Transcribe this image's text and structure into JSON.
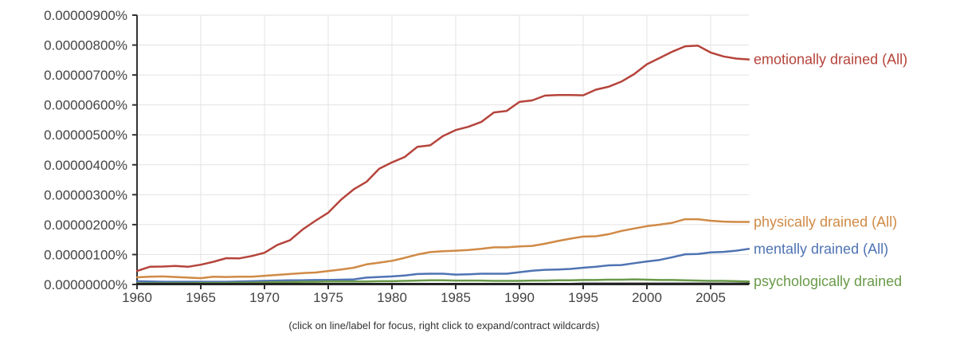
{
  "chart_data": {
    "type": "line",
    "x_ticks": [
      1960,
      1965,
      1970,
      1975,
      1980,
      1985,
      1990,
      1995,
      2000,
      2005
    ],
    "xlim": [
      1960,
      2008
    ],
    "y_ticks": [
      "0.00000000%",
      "0.00000100%",
      "0.00000200%",
      "0.00000300%",
      "0.00000400%",
      "0.00000500%",
      "0.00000600%",
      "0.00000700%",
      "0.00000800%",
      "0.00000900%"
    ],
    "ylim": [
      0,
      9e-08
    ],
    "y_unit": "%",
    "grid": true,
    "legend_placement": "right, at line ends",
    "x": [
      1960,
      1961,
      1962,
      1963,
      1964,
      1965,
      1966,
      1967,
      1968,
      1969,
      1970,
      1971,
      1972,
      1973,
      1974,
      1975,
      1976,
      1977,
      1978,
      1979,
      1980,
      1981,
      1982,
      1983,
      1984,
      1985,
      1986,
      1987,
      1988,
      1989,
      1990,
      1991,
      1992,
      1993,
      1994,
      1995,
      1996,
      1997,
      1998,
      1999,
      2000,
      2001,
      2002,
      2003,
      2004,
      2005,
      2006,
      2007,
      2008
    ],
    "series": [
      {
        "name": "emotionally drained (All)",
        "color": "#b5443b",
        "values": [
          4.5e-09,
          5.9e-09,
          6e-09,
          6.2e-09,
          5.9e-09,
          6.6e-09,
          7.6e-09,
          8.8e-09,
          8.7e-09,
          9.5e-09,
          1.06e-08,
          1.32e-08,
          1.48e-08,
          1.84e-08,
          2.13e-08,
          2.4e-08,
          2.83e-08,
          3.18e-08,
          3.43e-08,
          3.87e-08,
          4.08e-08,
          4.26e-08,
          4.6e-08,
          4.65e-08,
          4.96e-08,
          5.16e-08,
          5.27e-08,
          5.43e-08,
          5.75e-08,
          5.8e-08,
          6.1e-08,
          6.15e-08,
          6.31e-08,
          6.33e-08,
          6.33e-08,
          6.32e-08,
          6.51e-08,
          6.61e-08,
          6.78e-08,
          7.03e-08,
          7.36e-08,
          7.57e-08,
          7.78e-08,
          7.96e-08,
          7.98e-08,
          7.75e-08,
          7.62e-08,
          7.55e-08,
          7.52e-08
        ]
      },
      {
        "name": "physically drained (All)",
        "color": "#d08a46",
        "values": [
          2.4e-09,
          2.6e-09,
          2.7e-09,
          2.5e-09,
          2.3e-09,
          2.1e-09,
          2.6e-09,
          2.5e-09,
          2.6e-09,
          2.6e-09,
          2.9e-09,
          3.2e-09,
          3.5e-09,
          3.8e-09,
          4e-09,
          4.5e-09,
          5e-09,
          5.6e-09,
          6.7e-09,
          7.3e-09,
          7.9e-09,
          8.9e-09,
          1e-08,
          1.08e-08,
          1.11e-08,
          1.13e-08,
          1.15e-08,
          1.19e-08,
          1.24e-08,
          1.24e-08,
          1.27e-08,
          1.29e-08,
          1.36e-08,
          1.45e-08,
          1.53e-08,
          1.6e-08,
          1.61e-08,
          1.68e-08,
          1.79e-08,
          1.87e-08,
          1.95e-08,
          2e-08,
          2.06e-08,
          2.18e-08,
          2.18e-08,
          2.13e-08,
          2.1e-08,
          2.09e-08,
          2.09e-08
        ]
      },
      {
        "name": "mentally drained (All)",
        "color": "#4f73b3",
        "values": [
          1.1e-09,
          1e-09,
          9e-10,
          9e-10,
          9e-10,
          9e-10,
          9e-10,
          9e-10,
          1e-09,
          1.1e-09,
          1.2e-09,
          1.3e-09,
          1.4e-09,
          1.4e-09,
          1.5e-09,
          1.5e-09,
          1.6e-09,
          1.7e-09,
          2.3e-09,
          2.5e-09,
          2.7e-09,
          3e-09,
          3.5e-09,
          3.6e-09,
          3.6e-09,
          3.3e-09,
          3.4e-09,
          3.6e-09,
          3.6e-09,
          3.6e-09,
          4.1e-09,
          4.6e-09,
          4.9e-09,
          5e-09,
          5.2e-09,
          5.6e-09,
          5.9e-09,
          6.4e-09,
          6.5e-09,
          7.1e-09,
          7.7e-09,
          8.2e-09,
          9.1e-09,
          1.01e-08,
          1.02e-08,
          1.07e-08,
          1.09e-08,
          1.13e-08,
          1.19e-08
        ]
      },
      {
        "name": "psychologically drained",
        "color": "#6a9a4a",
        "values": [
          4e-10,
          4e-10,
          4e-10,
          4e-10,
          4e-10,
          5e-10,
          5e-10,
          5e-10,
          6e-10,
          6e-10,
          7e-10,
          8e-10,
          8e-10,
          9e-10,
          9e-10,
          1e-09,
          1e-09,
          1e-09,
          1e-09,
          1.1e-09,
          1.1e-09,
          1.2e-09,
          1.3e-09,
          1.4e-09,
          1.4e-09,
          1.3e-09,
          1.3e-09,
          1.3e-09,
          1.2e-09,
          1.2e-09,
          1.2e-09,
          1.3e-09,
          1.3e-09,
          1.4e-09,
          1.4e-09,
          1.5e-09,
          1.5e-09,
          1.6e-09,
          1.6e-09,
          1.7e-09,
          1.6e-09,
          1.5e-09,
          1.5e-09,
          1.4e-09,
          1.3e-09,
          1.2e-09,
          1.2e-09,
          1.1e-09,
          1e-09
        ]
      },
      {
        "name": "",
        "color": "#222222",
        "values": [
          2e-10,
          2e-10,
          2e-10,
          2e-10,
          2e-10,
          2e-10,
          2e-10,
          2e-10,
          2e-10,
          2e-10,
          2e-10,
          2e-10,
          2e-10,
          2e-10,
          2e-10,
          2e-10,
          2e-10,
          2e-10,
          2e-10,
          2e-10,
          2e-10,
          2e-10,
          2e-10,
          2e-10,
          2e-10,
          2e-10,
          2e-10,
          2e-10,
          2e-10,
          2e-10,
          2e-10,
          2e-10,
          2e-10,
          2e-10,
          2e-10,
          3e-10,
          3e-10,
          3e-10,
          3e-10,
          3e-10,
          3e-10,
          3e-10,
          3e-10,
          3e-10,
          3e-10,
          3e-10,
          3e-10,
          3e-10,
          3e-10
        ]
      }
    ]
  },
  "footnote": "(click on line/label for focus, right click to expand/contract wildcards)"
}
